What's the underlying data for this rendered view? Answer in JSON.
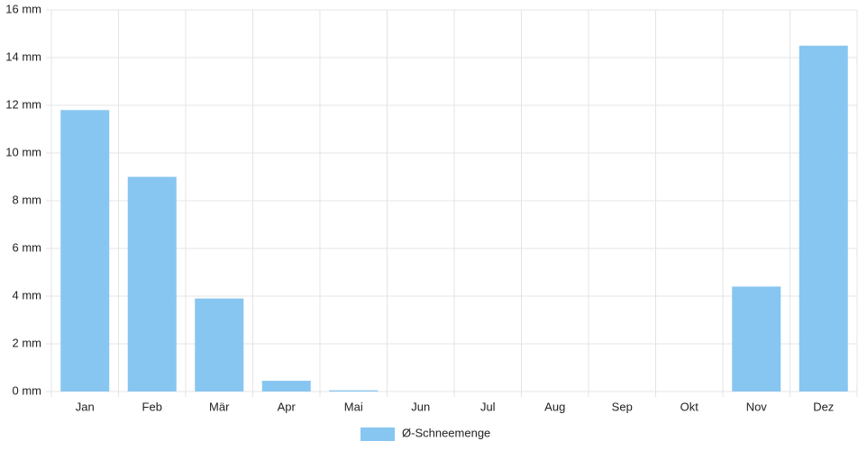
{
  "chart_data": {
    "type": "bar",
    "categories": [
      "Jan",
      "Feb",
      "Mär",
      "Apr",
      "Mai",
      "Jun",
      "Jul",
      "Aug",
      "Sep",
      "Okt",
      "Nov",
      "Dez"
    ],
    "series": [
      {
        "name": "Ø-Schneemenge",
        "color": "#87c6f1",
        "values": [
          11.8,
          9.0,
          3.9,
          0.45,
          0.05,
          0,
          0,
          0,
          0,
          0,
          4.4,
          14.5
        ]
      }
    ],
    "ylim": [
      0,
      16
    ],
    "yticks": [
      {
        "value": 0,
        "label": "0 mm"
      },
      {
        "value": 2,
        "label": "2 mm"
      },
      {
        "value": 4,
        "label": "4 mm"
      },
      {
        "value": 6,
        "label": "6 mm"
      },
      {
        "value": 8,
        "label": "8 mm"
      },
      {
        "value": 10,
        "label": "10 mm"
      },
      {
        "value": 12,
        "label": "12 mm"
      },
      {
        "value": 14,
        "label": "14 mm"
      },
      {
        "value": 16,
        "label": "16 mm"
      }
    ],
    "grid": true,
    "legend": "bottom"
  }
}
